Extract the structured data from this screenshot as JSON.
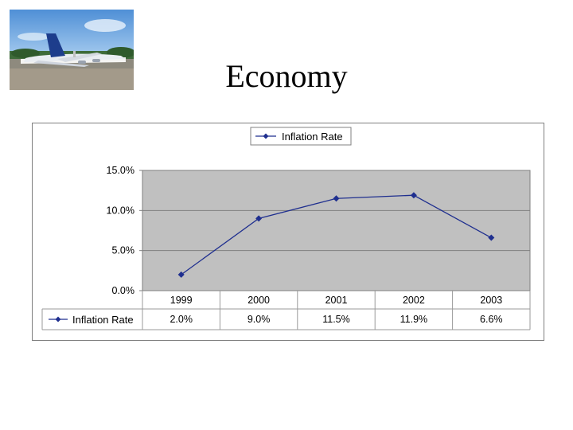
{
  "slide": {
    "title": "Economy",
    "photo_icon": "airplane-on-tarmac-photo"
  },
  "colors": {
    "series": "#1f2f8f",
    "plot_background": "#c0c0c0",
    "grid": "#808080"
  },
  "chart_data": {
    "type": "line",
    "title": "",
    "xlabel": "",
    "ylabel": "",
    "categories": [
      "1999",
      "2000",
      "2001",
      "2002",
      "2003"
    ],
    "series": [
      {
        "name": "Inflation Rate",
        "values": [
          2.0,
          9.0,
          11.5,
          11.9,
          6.6
        ],
        "labels": [
          "2.0%",
          "9.0%",
          "11.5%",
          "11.9%",
          "6.6%"
        ]
      }
    ],
    "ylim": [
      0,
      15
    ],
    "y_ticks": [
      "0.0%",
      "5.0%",
      "10.0%",
      "15.0%"
    ],
    "grid": true,
    "legend": "top-center",
    "data_table": true
  }
}
